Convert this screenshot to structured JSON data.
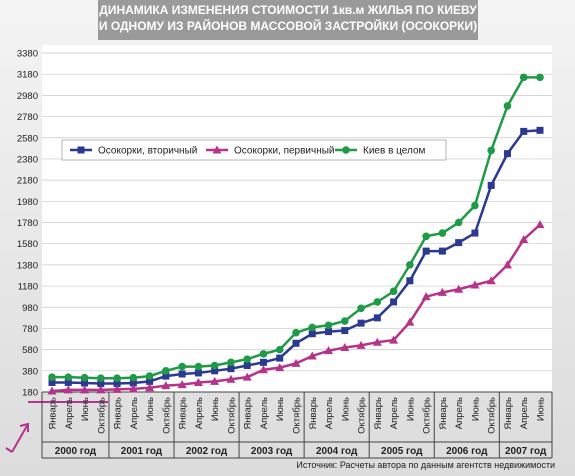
{
  "chart_data": {
    "type": "line",
    "title": [
      "ДИНАМИКА ИЗМЕНЕНИЯ СТОИМОСТИ 1кв.м ЖИЛЬЯ ПО КИЕВУ",
      "И ОДНОМУ ИЗ РАЙОНОВ МАССОВОЙ ЗАСТРОЙКИ (ОСОКОРКИ)"
    ],
    "source": "Источник: Расчеты автора по данным агентств недвижимости",
    "categories": [
      "Январь",
      "Апрель",
      "Июнь",
      "Октябрь",
      "Январь",
      "Апрель",
      "Июнь",
      "Октябрь",
      "Январь",
      "Апрель",
      "Июнь",
      "Октябрь",
      "Январь",
      "Апрель",
      "Июнь",
      "Октябрь",
      "Январь",
      "Апрель",
      "Июнь",
      "Октябрь",
      "Январь",
      "Апрель",
      "Июнь",
      "Октябрь",
      "Январь",
      "Апрель",
      "Июнь",
      "Октябрь",
      "Январь",
      "Апрель",
      "Июнь"
    ],
    "groups": [
      "2000 год",
      "2001 год",
      "2002 год",
      "2003 год",
      "2004 год",
      "2005 год",
      "2006 год",
      "2007 год"
    ],
    "series": [
      {
        "name": "Осокорки, вторичный",
        "color": "#2b3990",
        "marker": "square",
        "values": [
          270,
          270,
          265,
          260,
          260,
          265,
          280,
          330,
          350,
          360,
          380,
          400,
          430,
          460,
          500,
          640,
          730,
          750,
          760,
          830,
          880,
          1030,
          1230,
          1510,
          1510,
          1590,
          1680,
          2130,
          2430,
          2640,
          2650
        ]
      },
      {
        "name": "Осокорки, первичный",
        "color": "#b5338a",
        "marker": "triangle",
        "values": [
          190,
          200,
          200,
          200,
          205,
          210,
          220,
          240,
          250,
          270,
          280,
          300,
          320,
          390,
          410,
          450,
          520,
          570,
          600,
          620,
          650,
          670,
          840,
          1080,
          1120,
          1150,
          1190,
          1230,
          1380,
          1620,
          1760
        ]
      },
      {
        "name": "Киев в целом",
        "color": "#1f9a47",
        "marker": "circle",
        "values": [
          320,
          320,
          315,
          310,
          310,
          315,
          330,
          380,
          420,
          420,
          430,
          460,
          490,
          540,
          580,
          740,
          790,
          810,
          850,
          970,
          1030,
          1130,
          1380,
          1650,
          1680,
          1780,
          1940,
          2460,
          2880,
          3150,
          3150
        ]
      }
    ],
    "ylim": [
      180,
      3380
    ],
    "yticks": [
      180,
      380,
      580,
      780,
      980,
      1180,
      1380,
      1580,
      1780,
      1980,
      2180,
      2380,
      2580,
      2780,
      2980,
      3180,
      3380
    ],
    "grid": true
  }
}
